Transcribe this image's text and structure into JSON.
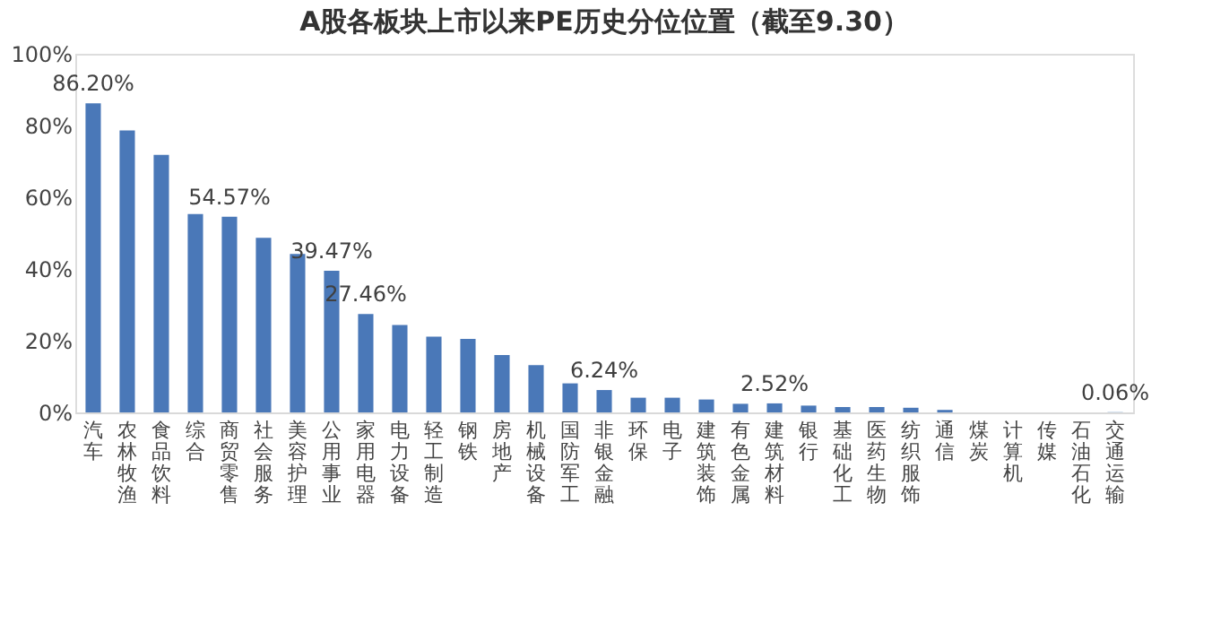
{
  "chart_data": {
    "type": "bar",
    "title": "A股各板块上市以来PE历史分位位置（截至9.30）",
    "categories": [
      "汽车",
      "农林牧渔",
      "食品饮料",
      "综合",
      "商贸零售",
      "社会服务",
      "美容护理",
      "公用事业",
      "家用电器",
      "电力设备",
      "轻工制造",
      "钢铁",
      "房地产",
      "机械设备",
      "国防军工",
      "非银金融",
      "环保",
      "电子",
      "建筑装饰",
      "有色金属",
      "建筑材料",
      "银行",
      "基础化工",
      "医药生物",
      "纺织服饰",
      "通信",
      "煤炭",
      "计算机",
      "传媒",
      "石油石化",
      "交通运输"
    ],
    "values": [
      86.2,
      78.6,
      71.8,
      55.3,
      54.57,
      48.7,
      44.2,
      39.47,
      27.46,
      24.4,
      21.1,
      20.5,
      16.0,
      13.2,
      8.1,
      6.24,
      4.1,
      4.1,
      3.6,
      2.4,
      2.52,
      1.9,
      1.5,
      1.5,
      1.3,
      0.7,
      0,
      0,
      0,
      0,
      0.06
    ],
    "value_labels": [
      "86.20%",
      null,
      null,
      null,
      "54.57%",
      null,
      null,
      "39.47%",
      "27.46%",
      null,
      null,
      null,
      null,
      null,
      null,
      "6.24%",
      null,
      null,
      null,
      null,
      "2.52%",
      null,
      null,
      null,
      null,
      null,
      null,
      null,
      null,
      null,
      "0.06%"
    ],
    "color": "#4a78b8",
    "ylim": [
      0,
      100
    ],
    "yticks": [
      {
        "value": 0,
        "label": "0%"
      },
      {
        "value": 20,
        "label": "20%"
      },
      {
        "value": 40,
        "label": "40%"
      },
      {
        "value": 60,
        "label": "60%"
      },
      {
        "value": 80,
        "label": "80%"
      },
      {
        "value": 100,
        "label": "100%"
      }
    ],
    "grid": false
  }
}
